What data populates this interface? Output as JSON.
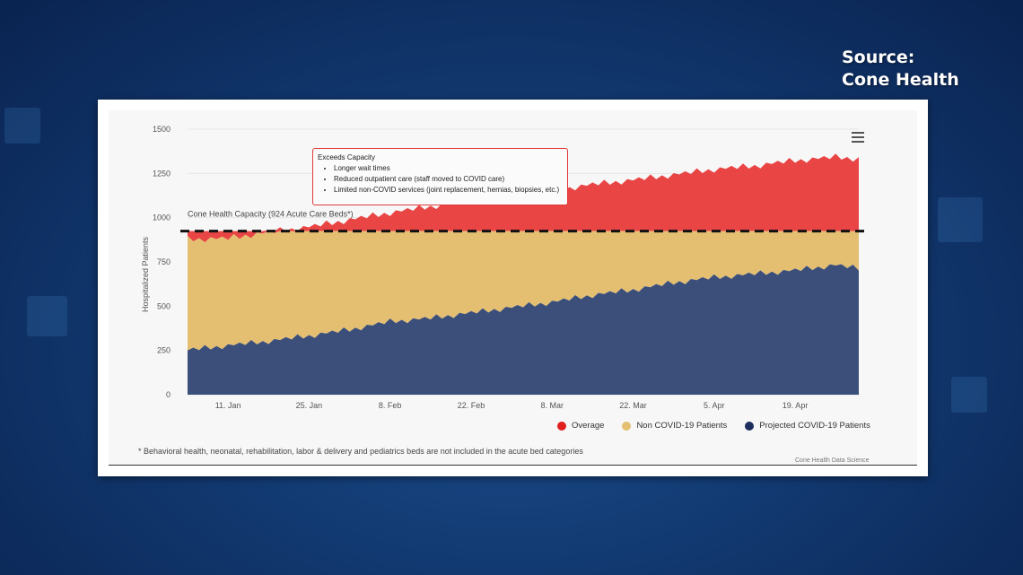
{
  "source_label": [
    "Source:",
    "Cone Health"
  ],
  "chart_data": {
    "type": "area",
    "stacked": true,
    "title": "",
    "xlabel": "",
    "ylabel": "Hospitalized Patients",
    "ylim": [
      0,
      1500
    ],
    "yticks": [
      0,
      250,
      500,
      750,
      1000,
      1250,
      1500
    ],
    "x_range": [
      "2021-01-04",
      "2021-04-30"
    ],
    "xticks": [
      {
        "date": "2021-01-11",
        "label": "11. Jan"
      },
      {
        "date": "2021-01-25",
        "label": "25. Jan"
      },
      {
        "date": "2021-02-08",
        "label": "8. Feb"
      },
      {
        "date": "2021-02-22",
        "label": "22. Feb"
      },
      {
        "date": "2021-03-08",
        "label": "8. Mar"
      },
      {
        "date": "2021-03-22",
        "label": "22. Mar"
      },
      {
        "date": "2021-04-05",
        "label": "5. Apr"
      },
      {
        "date": "2021-04-19",
        "label": "19. Apr"
      }
    ],
    "x": [
      "2021-01-04",
      "2021-01-11",
      "2021-01-18",
      "2021-01-25",
      "2021-02-01",
      "2021-02-08",
      "2021-02-15",
      "2021-02-22",
      "2021-03-01",
      "2021-03-08",
      "2021-03-15",
      "2021-03-22",
      "2021-03-29",
      "2021-04-05",
      "2021-04-12",
      "2021-04-19",
      "2021-04-26",
      "2021-04-30"
    ],
    "totals": [
      875,
      880,
      915,
      945,
      985,
      1025,
      1060,
      1090,
      1120,
      1150,
      1185,
      1210,
      1240,
      1270,
      1290,
      1320,
      1340,
      1330
    ],
    "series": [
      {
        "name": "Projected COVID-19 Patients",
        "color": "#3b4f7a",
        "values": [
          250,
          275,
          300,
          330,
          365,
          410,
          430,
          460,
          490,
          520,
          560,
          590,
          630,
          660,
          680,
          700,
          730,
          710
        ]
      },
      {
        "name": "Non COVID-19 Patients",
        "color": "#e4bf72",
        "values": [
          625,
          605,
          615,
          594,
          559,
          514,
          494,
          464,
          434,
          404,
          364,
          334,
          294,
          264,
          244,
          224,
          194,
          214
        ]
      },
      {
        "name": "Overage",
        "color": "#e94545",
        "values": [
          0,
          0,
          0,
          21,
          61,
          101,
          136,
          166,
          196,
          226,
          261,
          286,
          316,
          346,
          366,
          396,
          416,
          406
        ]
      }
    ],
    "capacity": {
      "value": 924,
      "label": "Cone Health Capacity (924 Acute Care Beds*)"
    },
    "annotation": {
      "title": "Exceeds Capacity",
      "bullets": [
        "Longer wait times",
        "Reduced outpatient care (staff moved to COVID care)",
        "Limited non-COVID services (joint replacement, hernias, biopsies, etc.)"
      ]
    },
    "legend": {
      "placement": "bottom-right",
      "items": [
        {
          "label": "Overage",
          "color": "#e02020"
        },
        {
          "label": "Non COVID-19 Patients",
          "color": "#e4bf72"
        },
        {
          "label": "Projected COVID-19 Patients",
          "color": "#1c2e5e"
        }
      ]
    },
    "footnote": "* Behavioral health, neonatal, rehabilitation, labor & delivery and pediatrics beds are not included in the acute bed categories",
    "credit": "Cone Health Data Science"
  }
}
